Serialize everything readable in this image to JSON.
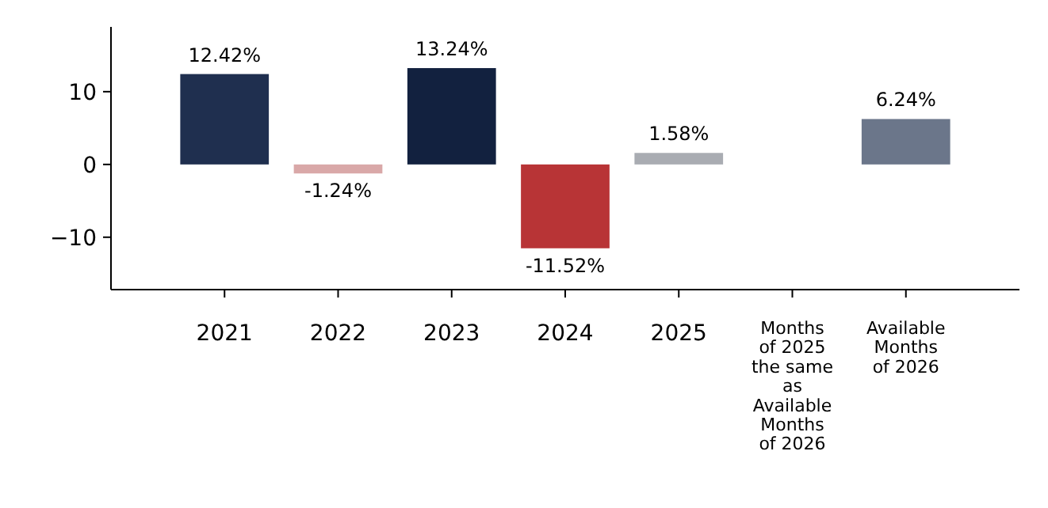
{
  "chart_data": {
    "type": "bar",
    "categories": [
      "2021",
      "2022",
      "2023",
      "2024",
      "2025",
      "Months\nof 2025\nthe same\nas\nAvailable\nMonths\nof 2026",
      "Available\nMonths\nof 2026"
    ],
    "values": [
      12.42,
      -1.24,
      13.24,
      -11.52,
      1.58,
      null,
      6.24
    ],
    "colors": [
      "#1f2f4f",
      "#d9a8a8",
      "#12213f",
      "#b83436",
      "#a9acb2",
      null,
      "#6b768a"
    ],
    "value_labels": [
      "12.42%",
      "-1.24%",
      "13.24%",
      "-11.52%",
      "1.58%",
      null,
      "6.24%"
    ],
    "ylim": [
      -17.2,
      18.9
    ],
    "yticks": [
      {
        "value": -10,
        "label": "−10"
      },
      0,
      10
    ],
    "grid": false
  }
}
